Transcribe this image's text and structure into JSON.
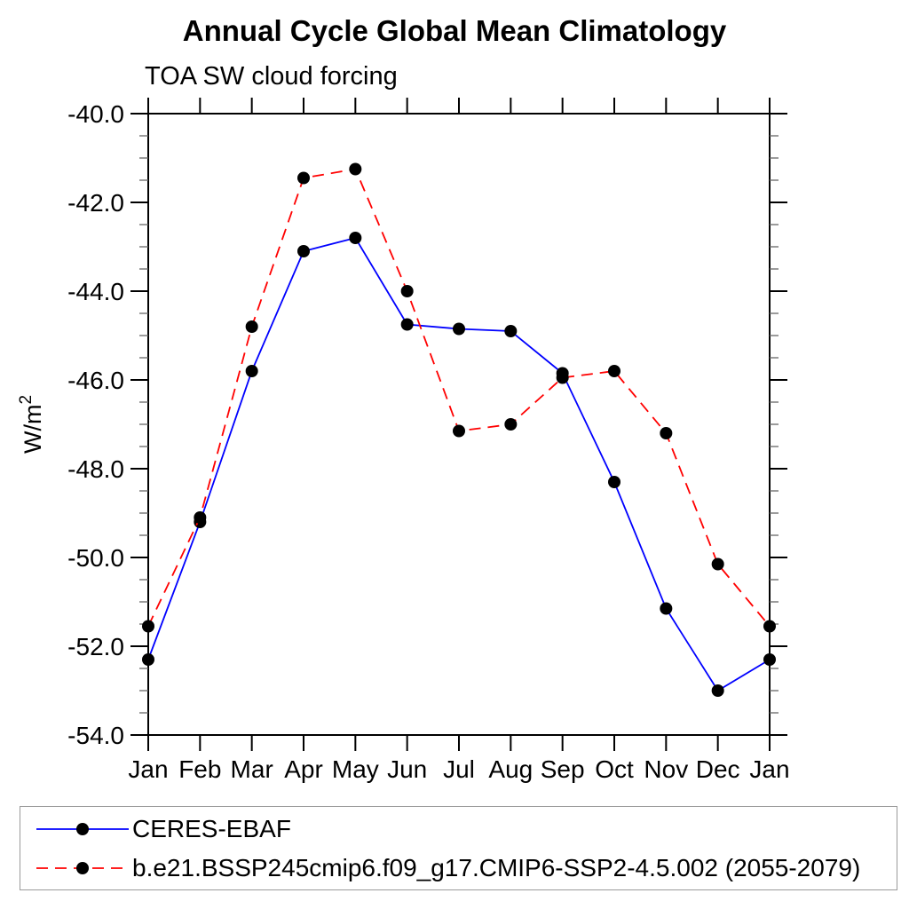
{
  "chart": {
    "title": "Annual Cycle Global Mean Climatology",
    "subtitle": "TOA SW cloud forcing",
    "y_axis_label_base": "W/m",
    "y_axis_label_superscript": "2"
  },
  "chart_data": {
    "type": "line",
    "title": "Annual Cycle Global Mean Climatology",
    "subtitle": "TOA SW cloud forcing",
    "xlabel": "",
    "ylabel": "W/m^2",
    "categories": [
      "Jan",
      "Feb",
      "Mar",
      "Apr",
      "May",
      "Jun",
      "Jul",
      "Aug",
      "Sep",
      "Oct",
      "Nov",
      "Dec",
      "Jan"
    ],
    "ylim": [
      -54.0,
      -40.0
    ],
    "y_major_step": 2.0,
    "y_minor_step": 0.5,
    "y_tick_decimals": 1,
    "grid": false,
    "legend_position": "bottom",
    "marker": "filled-circle",
    "marker_color": "#000000",
    "series": [
      {
        "name": "CERES-EBAF",
        "color": "#0000ff",
        "line_style": "solid",
        "values": [
          -52.3,
          -49.2,
          -45.8,
          -43.1,
          -42.8,
          -44.75,
          -44.85,
          -44.9,
          -45.85,
          -48.3,
          -51.15,
          -53.0,
          -52.3
        ]
      },
      {
        "name": "b.e21.BSSP245cmip6.f09_g17.CMIP6-SSP2-4.5.002 (2055-2079)",
        "color": "#ff0000",
        "line_style": "dashed",
        "values": [
          -51.55,
          -49.1,
          -44.8,
          -41.45,
          -41.25,
          -44.0,
          -47.15,
          -47.0,
          -45.95,
          -45.8,
          -47.2,
          -50.15,
          -51.55
        ]
      }
    ]
  }
}
